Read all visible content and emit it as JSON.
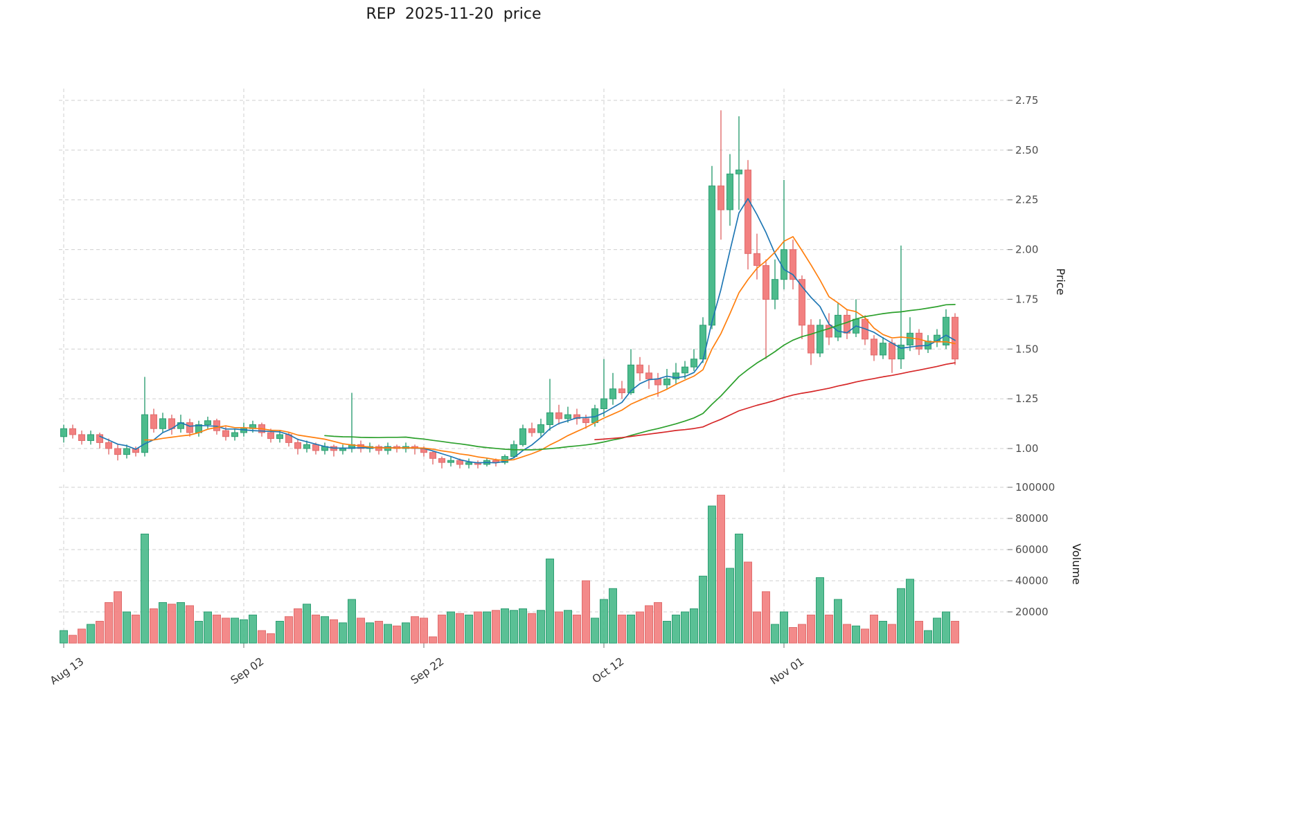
{
  "style": {
    "up_color": "#4CBB8C",
    "down_color": "#F28080",
    "up_edge": "#2E9E73",
    "down_edge": "#E06C6C",
    "grid_color": "#cfcfcf",
    "ma_colors": [
      "#1f77b4",
      "#ff7f0e",
      "#2ca02c",
      "#d62728"
    ]
  },
  "chart_data": {
    "type": "candlestick_with_volume",
    "title": "REP  2025-11-20  price",
    "symbol": "REP",
    "as_of_date": "2025-11-20",
    "ylabel_price": "Price",
    "ylabel_volume": "Volume",
    "grid": true,
    "price_ticks": [
      1.0,
      1.25,
      1.5,
      1.75,
      2.0,
      2.25,
      2.5,
      2.75
    ],
    "volume_ticks": [
      20000,
      40000,
      60000,
      80000,
      100000
    ],
    "x_tick_labels": [
      "Aug 13",
      "Sep 02",
      "Sep 22",
      "Oct 12",
      "Nov 01"
    ],
    "x_tick_indices": [
      0,
      20,
      40,
      60,
      80
    ],
    "price_range": [
      0.87,
      2.84
    ],
    "volume_range": [
      0,
      102000
    ],
    "moving_averages": {
      "periods": [
        5,
        10,
        30,
        60
      ]
    },
    "candles": [
      {
        "d": "2025-08-13",
        "o": 1.06,
        "h": 1.12,
        "l": 1.03,
        "c": 1.1,
        "v": 8000
      },
      {
        "d": "2025-08-14",
        "o": 1.1,
        "h": 1.12,
        "l": 1.05,
        "c": 1.07,
        "v": 5000
      },
      {
        "d": "2025-08-15",
        "o": 1.07,
        "h": 1.09,
        "l": 1.02,
        "c": 1.04,
        "v": 9000
      },
      {
        "d": "2025-08-16",
        "o": 1.04,
        "h": 1.09,
        "l": 1.02,
        "c": 1.07,
        "v": 12000
      },
      {
        "d": "2025-08-17",
        "o": 1.07,
        "h": 1.08,
        "l": 1.0,
        "c": 1.03,
        "v": 14000
      },
      {
        "d": "2025-08-18",
        "o": 1.03,
        "h": 1.05,
        "l": 0.97,
        "c": 1.0,
        "v": 26000
      },
      {
        "d": "2025-08-19",
        "o": 1.0,
        "h": 1.02,
        "l": 0.94,
        "c": 0.97,
        "v": 33000
      },
      {
        "d": "2025-08-20",
        "o": 0.97,
        "h": 1.02,
        "l": 0.95,
        "c": 1.0,
        "v": 20000
      },
      {
        "d": "2025-08-21",
        "o": 1.0,
        "h": 1.01,
        "l": 0.96,
        "c": 0.98,
        "v": 18000
      },
      {
        "d": "2025-08-22",
        "o": 0.98,
        "h": 1.36,
        "l": 0.96,
        "c": 1.17,
        "v": 70000
      },
      {
        "d": "2025-08-23",
        "o": 1.17,
        "h": 1.2,
        "l": 1.08,
        "c": 1.1,
        "v": 22000
      },
      {
        "d": "2025-08-24",
        "o": 1.1,
        "h": 1.18,
        "l": 1.08,
        "c": 1.15,
        "v": 26000
      },
      {
        "d": "2025-08-25",
        "o": 1.15,
        "h": 1.17,
        "l": 1.07,
        "c": 1.1,
        "v": 25000
      },
      {
        "d": "2025-08-26",
        "o": 1.1,
        "h": 1.17,
        "l": 1.08,
        "c": 1.13,
        "v": 26000
      },
      {
        "d": "2025-08-27",
        "o": 1.13,
        "h": 1.15,
        "l": 1.06,
        "c": 1.08,
        "v": 24000
      },
      {
        "d": "2025-08-28",
        "o": 1.08,
        "h": 1.14,
        "l": 1.06,
        "c": 1.12,
        "v": 14000
      },
      {
        "d": "2025-08-29",
        "o": 1.12,
        "h": 1.16,
        "l": 1.1,
        "c": 1.14,
        "v": 20000
      },
      {
        "d": "2025-08-30",
        "o": 1.14,
        "h": 1.15,
        "l": 1.07,
        "c": 1.09,
        "v": 18000
      },
      {
        "d": "2025-08-31",
        "o": 1.09,
        "h": 1.11,
        "l": 1.04,
        "c": 1.06,
        "v": 16000
      },
      {
        "d": "2025-09-01",
        "o": 1.06,
        "h": 1.1,
        "l": 1.04,
        "c": 1.08,
        "v": 16000
      },
      {
        "d": "2025-09-02",
        "o": 1.08,
        "h": 1.13,
        "l": 1.06,
        "c": 1.1,
        "v": 15000
      },
      {
        "d": "2025-09-03",
        "o": 1.1,
        "h": 1.14,
        "l": 1.08,
        "c": 1.12,
        "v": 18000
      },
      {
        "d": "2025-09-04",
        "o": 1.12,
        "h": 1.13,
        "l": 1.06,
        "c": 1.08,
        "v": 8000
      },
      {
        "d": "2025-09-05",
        "o": 1.08,
        "h": 1.1,
        "l": 1.03,
        "c": 1.05,
        "v": 6000
      },
      {
        "d": "2025-09-06",
        "o": 1.05,
        "h": 1.09,
        "l": 1.03,
        "c": 1.07,
        "v": 14000
      },
      {
        "d": "2025-09-07",
        "o": 1.07,
        "h": 1.08,
        "l": 1.01,
        "c": 1.03,
        "v": 17000
      },
      {
        "d": "2025-09-08",
        "o": 1.03,
        "h": 1.05,
        "l": 0.97,
        "c": 1.0,
        "v": 22000
      },
      {
        "d": "2025-09-09",
        "o": 1.0,
        "h": 1.04,
        "l": 0.98,
        "c": 1.02,
        "v": 25000
      },
      {
        "d": "2025-09-10",
        "o": 1.02,
        "h": 1.03,
        "l": 0.97,
        "c": 0.99,
        "v": 18000
      },
      {
        "d": "2025-09-11",
        "o": 0.99,
        "h": 1.03,
        "l": 0.97,
        "c": 1.01,
        "v": 17000
      },
      {
        "d": "2025-09-12",
        "o": 1.01,
        "h": 1.02,
        "l": 0.96,
        "c": 0.99,
        "v": 15000
      },
      {
        "d": "2025-09-13",
        "o": 0.99,
        "h": 1.02,
        "l": 0.97,
        "c": 1.0,
        "v": 13000
      },
      {
        "d": "2025-09-14",
        "o": 1.0,
        "h": 1.28,
        "l": 0.98,
        "c": 1.02,
        "v": 28000
      },
      {
        "d": "2025-09-15",
        "o": 1.02,
        "h": 1.04,
        "l": 0.98,
        "c": 1.0,
        "v": 16000
      },
      {
        "d": "2025-09-16",
        "o": 1.0,
        "h": 1.03,
        "l": 0.98,
        "c": 1.01,
        "v": 13000
      },
      {
        "d": "2025-09-17",
        "o": 1.01,
        "h": 1.02,
        "l": 0.97,
        "c": 0.99,
        "v": 14000
      },
      {
        "d": "2025-09-18",
        "o": 0.99,
        "h": 1.03,
        "l": 0.97,
        "c": 1.01,
        "v": 12000
      },
      {
        "d": "2025-09-19",
        "o": 1.01,
        "h": 1.02,
        "l": 0.98,
        "c": 1.0,
        "v": 11000
      },
      {
        "d": "2025-09-20",
        "o": 1.0,
        "h": 1.03,
        "l": 0.98,
        "c": 1.01,
        "v": 13000
      },
      {
        "d": "2025-09-21",
        "o": 1.01,
        "h": 1.02,
        "l": 0.97,
        "c": 1.0,
        "v": 17000
      },
      {
        "d": "2025-09-22",
        "o": 1.0,
        "h": 1.01,
        "l": 0.96,
        "c": 0.98,
        "v": 16000
      },
      {
        "d": "2025-09-23",
        "o": 0.98,
        "h": 0.99,
        "l": 0.92,
        "c": 0.95,
        "v": 4000
      },
      {
        "d": "2025-09-24",
        "o": 0.95,
        "h": 0.96,
        "l": 0.9,
        "c": 0.93,
        "v": 18000
      },
      {
        "d": "2025-09-25",
        "o": 0.93,
        "h": 0.96,
        "l": 0.91,
        "c": 0.94,
        "v": 20000
      },
      {
        "d": "2025-09-26",
        "o": 0.94,
        "h": 0.95,
        "l": 0.9,
        "c": 0.92,
        "v": 19000
      },
      {
        "d": "2025-09-27",
        "o": 0.92,
        "h": 0.95,
        "l": 0.9,
        "c": 0.93,
        "v": 18000
      },
      {
        "d": "2025-09-28",
        "o": 0.93,
        "h": 0.94,
        "l": 0.9,
        "c": 0.92,
        "v": 20000
      },
      {
        "d": "2025-09-29",
        "o": 0.92,
        "h": 0.95,
        "l": 0.91,
        "c": 0.94,
        "v": 20000
      },
      {
        "d": "2025-09-30",
        "o": 0.94,
        "h": 0.95,
        "l": 0.91,
        "c": 0.93,
        "v": 21000
      },
      {
        "d": "2025-10-01",
        "o": 0.93,
        "h": 0.97,
        "l": 0.92,
        "c": 0.96,
        "v": 22000
      },
      {
        "d": "2025-10-02",
        "o": 0.96,
        "h": 1.04,
        "l": 0.95,
        "c": 1.02,
        "v": 21000
      },
      {
        "d": "2025-10-03",
        "o": 1.02,
        "h": 1.12,
        "l": 1.01,
        "c": 1.1,
        "v": 22000
      },
      {
        "d": "2025-10-04",
        "o": 1.1,
        "h": 1.13,
        "l": 1.06,
        "c": 1.08,
        "v": 19000
      },
      {
        "d": "2025-10-05",
        "o": 1.08,
        "h": 1.15,
        "l": 1.06,
        "c": 1.12,
        "v": 21000
      },
      {
        "d": "2025-10-06",
        "o": 1.12,
        "h": 1.35,
        "l": 1.09,
        "c": 1.18,
        "v": 54000
      },
      {
        "d": "2025-10-07",
        "o": 1.18,
        "h": 1.22,
        "l": 1.12,
        "c": 1.15,
        "v": 20000
      },
      {
        "d": "2025-10-08",
        "o": 1.15,
        "h": 1.21,
        "l": 1.13,
        "c": 1.17,
        "v": 21000
      },
      {
        "d": "2025-10-09",
        "o": 1.17,
        "h": 1.2,
        "l": 1.12,
        "c": 1.15,
        "v": 18000
      },
      {
        "d": "2025-10-10",
        "o": 1.15,
        "h": 1.17,
        "l": 1.1,
        "c": 1.13,
        "v": 40000
      },
      {
        "d": "2025-10-11",
        "o": 1.13,
        "h": 1.22,
        "l": 1.11,
        "c": 1.2,
        "v": 16000
      },
      {
        "d": "2025-10-12",
        "o": 1.2,
        "h": 1.45,
        "l": 1.16,
        "c": 1.25,
        "v": 28000
      },
      {
        "d": "2025-10-13",
        "o": 1.25,
        "h": 1.38,
        "l": 1.22,
        "c": 1.3,
        "v": 35000
      },
      {
        "d": "2025-10-14",
        "o": 1.3,
        "h": 1.34,
        "l": 1.25,
        "c": 1.28,
        "v": 18000
      },
      {
        "d": "2025-10-15",
        "o": 1.28,
        "h": 1.5,
        "l": 1.27,
        "c": 1.42,
        "v": 18000
      },
      {
        "d": "2025-10-16",
        "o": 1.42,
        "h": 1.46,
        "l": 1.34,
        "c": 1.38,
        "v": 20000
      },
      {
        "d": "2025-10-17",
        "o": 1.38,
        "h": 1.42,
        "l": 1.3,
        "c": 1.35,
        "v": 24000
      },
      {
        "d": "2025-10-18",
        "o": 1.35,
        "h": 1.38,
        "l": 1.26,
        "c": 1.32,
        "v": 26000
      },
      {
        "d": "2025-10-19",
        "o": 1.32,
        "h": 1.4,
        "l": 1.3,
        "c": 1.35,
        "v": 14000
      },
      {
        "d": "2025-10-20",
        "o": 1.35,
        "h": 1.43,
        "l": 1.32,
        "c": 1.38,
        "v": 18000
      },
      {
        "d": "2025-10-21",
        "o": 1.38,
        "h": 1.44,
        "l": 1.35,
        "c": 1.41,
        "v": 20000
      },
      {
        "d": "2025-10-22",
        "o": 1.41,
        "h": 1.5,
        "l": 1.39,
        "c": 1.45,
        "v": 22000
      },
      {
        "d": "2025-10-23",
        "o": 1.45,
        "h": 1.66,
        "l": 1.43,
        "c": 1.62,
        "v": 43000
      },
      {
        "d": "2025-10-24",
        "o": 1.62,
        "h": 2.42,
        "l": 1.6,
        "c": 2.32,
        "v": 88000
      },
      {
        "d": "2025-10-25",
        "o": 2.32,
        "h": 2.7,
        "l": 2.05,
        "c": 2.2,
        "v": 95000
      },
      {
        "d": "2025-10-26",
        "o": 2.2,
        "h": 2.48,
        "l": 2.12,
        "c": 2.38,
        "v": 48000
      },
      {
        "d": "2025-10-27",
        "o": 2.38,
        "h": 2.67,
        "l": 2.2,
        "c": 2.4,
        "v": 70000
      },
      {
        "d": "2025-10-28",
        "o": 2.4,
        "h": 2.45,
        "l": 1.9,
        "c": 1.98,
        "v": 52000
      },
      {
        "d": "2025-10-29",
        "o": 1.98,
        "h": 2.08,
        "l": 1.85,
        "c": 1.92,
        "v": 20000
      },
      {
        "d": "2025-10-30",
        "o": 1.92,
        "h": 1.95,
        "l": 1.45,
        "c": 1.75,
        "v": 33000
      },
      {
        "d": "2025-10-31",
        "o": 1.75,
        "h": 1.95,
        "l": 1.7,
        "c": 1.85,
        "v": 12000
      },
      {
        "d": "2025-11-01",
        "o": 1.85,
        "h": 2.35,
        "l": 1.8,
        "c": 2.0,
        "v": 20000
      },
      {
        "d": "2025-11-02",
        "o": 2.0,
        "h": 2.05,
        "l": 1.8,
        "c": 1.85,
        "v": 10000
      },
      {
        "d": "2025-11-03",
        "o": 1.85,
        "h": 1.87,
        "l": 1.55,
        "c": 1.62,
        "v": 12000
      },
      {
        "d": "2025-11-04",
        "o": 1.62,
        "h": 1.65,
        "l": 1.42,
        "c": 1.48,
        "v": 18000
      },
      {
        "d": "2025-11-05",
        "o": 1.48,
        "h": 1.65,
        "l": 1.46,
        "c": 1.62,
        "v": 42000
      },
      {
        "d": "2025-11-06",
        "o": 1.62,
        "h": 1.68,
        "l": 1.52,
        "c": 1.56,
        "v": 18000
      },
      {
        "d": "2025-11-07",
        "o": 1.56,
        "h": 1.73,
        "l": 1.54,
        "c": 1.67,
        "v": 28000
      },
      {
        "d": "2025-11-08",
        "o": 1.67,
        "h": 1.7,
        "l": 1.55,
        "c": 1.58,
        "v": 12000
      },
      {
        "d": "2025-11-09",
        "o": 1.58,
        "h": 1.75,
        "l": 1.56,
        "c": 1.65,
        "v": 11000
      },
      {
        "d": "2025-11-10",
        "o": 1.65,
        "h": 1.67,
        "l": 1.52,
        "c": 1.55,
        "v": 9000
      },
      {
        "d": "2025-11-11",
        "o": 1.55,
        "h": 1.57,
        "l": 1.44,
        "c": 1.47,
        "v": 18000
      },
      {
        "d": "2025-11-12",
        "o": 1.47,
        "h": 1.56,
        "l": 1.45,
        "c": 1.53,
        "v": 14000
      },
      {
        "d": "2025-11-13",
        "o": 1.53,
        "h": 1.55,
        "l": 1.38,
        "c": 1.45,
        "v": 12000
      },
      {
        "d": "2025-11-14",
        "o": 1.45,
        "h": 2.02,
        "l": 1.4,
        "c": 1.52,
        "v": 35000
      },
      {
        "d": "2025-11-15",
        "o": 1.52,
        "h": 1.66,
        "l": 1.49,
        "c": 1.58,
        "v": 41000
      },
      {
        "d": "2025-11-16",
        "o": 1.58,
        "h": 1.6,
        "l": 1.47,
        "c": 1.5,
        "v": 14000
      },
      {
        "d": "2025-11-17",
        "o": 1.5,
        "h": 1.57,
        "l": 1.48,
        "c": 1.54,
        "v": 8000
      },
      {
        "d": "2025-11-18",
        "o": 1.54,
        "h": 1.6,
        "l": 1.51,
        "c": 1.57,
        "v": 16000
      },
      {
        "d": "2025-11-19",
        "o": 1.52,
        "h": 1.7,
        "l": 1.5,
        "c": 1.66,
        "v": 20000
      },
      {
        "d": "2025-11-20",
        "o": 1.66,
        "h": 1.68,
        "l": 1.42,
        "c": 1.45,
        "v": 14000
      }
    ]
  }
}
